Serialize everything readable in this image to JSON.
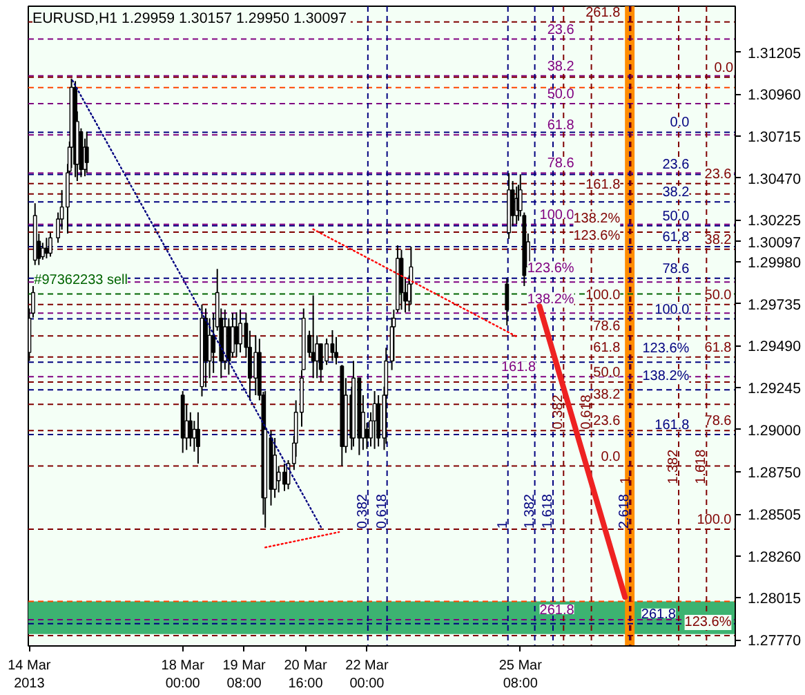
{
  "chart_data": {
    "type": "candlestick",
    "title": "EURUSD,H1  1.29959 1.30157 1.29950 1.30097",
    "color": "#000000",
    "x": [
      "2013-03-14T16:00",
      "2013-03-14T18:00",
      "2013-03-14T19:00",
      "2013-03-14T21:00",
      "2013-03-14T23:00",
      "2013-03-15T01:00",
      "2013-03-15T03:00",
      "2013-03-15T07:00",
      "2013-03-15T09:00",
      "2013-03-15T12:00",
      "2013-03-15T13:00",
      "2013-03-15T14:00",
      "2013-03-15T16:00",
      "2013-03-15T17:00",
      "2013-03-15T19:00",
      "2013-03-15T21:00",
      "2013-03-15T22:00",
      "2013-03-18T00:00",
      "2013-03-18T02:00",
      "2013-03-18T04:00",
      "2013-03-18T06:00",
      "2013-03-18T08:00",
      "2013-03-18T10:00",
      "2013-03-18T12:00",
      "2013-03-18T14:00",
      "2013-03-18T16:00",
      "2013-03-18T18:00",
      "2013-03-18T20:00",
      "2013-03-18T22:00",
      "2013-03-19T00:00",
      "2013-03-19T02:00",
      "2013-03-19T04:00",
      "2013-03-19T06:00",
      "2013-03-19T09:00",
      "2013-03-19T11:00",
      "2013-03-19T14:00",
      "2013-03-19T16:00",
      "2013-03-19T18:00",
      "2013-03-19T19:00",
      "2013-03-19T22:00",
      "2013-03-20T00:00",
      "2013-03-20T02:00",
      "2013-03-20T05:00",
      "2013-03-20T07:00",
      "2013-03-20T10:00",
      "2013-03-20T11:00",
      "2013-03-20T14:00",
      "2013-03-20T15:00",
      "2013-03-20T18:00",
      "2013-03-20T20:00",
      "2013-03-20T22:00",
      "2013-03-21T00:00",
      "2013-03-21T03:00",
      "2013-03-21T06:00",
      "2013-03-21T08:00",
      "2013-03-21T11:00",
      "2013-03-21T13:00",
      "2013-03-21T16:00",
      "2013-03-21T17:00",
      "2013-03-21T20:00",
      "2013-03-21T22:00",
      "2013-03-22T00:00",
      "2013-03-22T02:00",
      "2013-03-22T04:00",
      "2013-03-22T06:00",
      "2013-03-22T09:00",
      "2013-03-22T10:00",
      "2013-03-22T13:00",
      "2013-03-22T14:00",
      "2013-03-22T16:00",
      "2013-03-22T18:00",
      "2013-03-22T20:00",
      "2013-03-22T22:00",
      "2013-03-22T23:00",
      "2013-03-25T01:00",
      "2013-03-25T02:00",
      "2013-03-25T04:00",
      "2013-03-25T06:00",
      "2013-03-25T07:00",
      "2013-03-25T08:00",
      "2013-03-25T10:00",
      "2013-03-25T12:00"
    ],
    "ohlc": [
      [
        1.2945,
        1.29707,
        1.294,
        1.2965
      ],
      [
        1.2968,
        1.29838,
        1.29654,
        1.298
      ],
      [
        1.2999,
        1.30322,
        1.29961,
        1.3025
      ],
      [
        1.301,
        1.30145,
        1.29961,
        1.3
      ],
      [
        1.3001,
        1.30091,
        1.29992,
        1.3006
      ],
      [
        1.3006,
        1.3012,
        1.3,
        1.3003
      ],
      [
        1.3003,
        1.3015,
        1.3001,
        1.3012
      ],
      [
        1.3012,
        1.30268,
        1.30091,
        1.3023
      ],
      [
        1.3023,
        1.30399,
        1.30168,
        1.303
      ],
      [
        1.303,
        1.30552,
        1.30145,
        1.305
      ],
      [
        1.3051,
        1.30683,
        1.30498,
        1.3065
      ],
      [
        1.3065,
        1.31051,
        1.30529,
        1.31
      ],
      [
        1.31,
        1.31036,
        1.30475,
        1.3055
      ],
      [
        1.3055,
        1.30859,
        1.30452,
        1.308
      ],
      [
        1.3074,
        1.3076,
        1.30475,
        1.3052
      ],
      [
        1.3052,
        1.307,
        1.3048,
        1.3065
      ],
      [
        1.3065,
        1.3074,
        1.305,
        1.3056
      ],
      [
        1.292,
        1.29224,
        1.28863,
        1.2895
      ],
      [
        1.2895,
        1.2915,
        1.2888,
        1.2905
      ],
      [
        1.2905,
        1.291,
        1.289,
        1.2895
      ],
      [
        1.2895,
        1.2905,
        1.2887,
        1.29
      ],
      [
        1.29,
        1.291,
        1.288,
        1.289
      ],
      [
        1.2925,
        1.2973,
        1.29193,
        1.2965
      ],
      [
        1.2965,
        1.29707,
        1.29247,
        1.294
      ],
      [
        1.294,
        1.2965,
        1.293,
        1.2955
      ],
      [
        1.2955,
        1.2968,
        1.2933,
        1.2945
      ],
      [
        1.296,
        1.29938,
        1.29577,
        1.298
      ],
      [
        1.2965,
        1.29707,
        1.293,
        1.294
      ],
      [
        1.294,
        1.297,
        1.2935,
        1.296
      ],
      [
        1.296,
        1.2965,
        1.2932,
        1.294
      ],
      [
        1.2945,
        1.2968,
        1.2942,
        1.296
      ],
      [
        1.296,
        1.29684,
        1.29423,
        1.295
      ],
      [
        1.295,
        1.297,
        1.2945,
        1.2962
      ],
      [
        1.2962,
        1.2968,
        1.2942,
        1.2948
      ],
      [
        1.2948,
        1.29577,
        1.2917,
        1.293
      ],
      [
        1.293,
        1.2955,
        1.292,
        1.2945
      ],
      [
        1.2945,
        1.2953,
        1.2917,
        1.292
      ],
      [
        1.292,
        1.2922,
        1.28502,
        1.286
      ],
      [
        1.286,
        1.29224,
        1.28425,
        1.29
      ],
      [
        1.2895,
        1.28993,
        1.28555,
        1.2865
      ],
      [
        1.2865,
        1.2895,
        1.286,
        1.2885
      ],
      [
        1.287,
        1.28786,
        1.28632,
        1.2875
      ],
      [
        1.2875,
        1.288,
        1.2864,
        1.2868
      ],
      [
        1.2868,
        1.2882,
        1.2865,
        1.288
      ],
      [
        1.288,
        1.28962,
        1.28763,
        1.2892
      ],
      [
        1.2892,
        1.2917,
        1.2884,
        1.291
      ],
      [
        1.291,
        1.29347,
        1.29016,
        1.293
      ],
      [
        1.2935,
        1.29707,
        1.29347,
        1.2965
      ],
      [
        1.2955,
        1.29577,
        1.29423,
        1.2945
      ],
      [
        1.2945,
        1.29784,
        1.293,
        1.294
      ],
      [
        1.294,
        1.2955,
        1.293,
        1.295
      ],
      [
        1.295,
        1.295,
        1.2928,
        1.2935
      ],
      [
        1.294,
        1.29531,
        1.29377,
        1.295
      ],
      [
        1.295,
        1.2958,
        1.294,
        1.2945
      ],
      [
        1.2945,
        1.2954,
        1.2938,
        1.2942
      ],
      [
        1.2937,
        1.29377,
        1.28786,
        1.289
      ],
      [
        1.289,
        1.293,
        1.28863,
        1.292
      ],
      [
        1.292,
        1.2925,
        1.2888,
        1.2895
      ],
      [
        1.2895,
        1.294,
        1.289,
        1.293
      ],
      [
        1.293,
        1.293,
        1.2885,
        1.2895
      ],
      [
        1.2895,
        1.292,
        1.2888,
        1.291
      ],
      [
        1.29,
        1.29039,
        1.28886,
        1.2895
      ],
      [
        1.2895,
        1.291,
        1.289,
        1.2905
      ],
      [
        1.2905,
        1.29224,
        1.28886,
        1.2915
      ],
      [
        1.2915,
        1.292,
        1.289,
        1.2895
      ],
      [
        1.2895,
        1.2925,
        1.2888,
        1.292
      ],
      [
        1.292,
        1.29477,
        1.28916,
        1.294
      ],
      [
        1.294,
        1.29654,
        1.29347,
        1.296
      ],
      [
        1.296,
        1.297,
        1.294,
        1.2965
      ],
      [
        1.297,
        1.30076,
        1.29684,
        1.3
      ],
      [
        1.3,
        1.3005,
        1.297,
        1.298
      ],
      [
        1.298,
        1.29884,
        1.29684,
        1.2975
      ],
      [
        1.2975,
        1.299,
        1.2969,
        1.2985
      ],
      [
        1.2985,
        1.30068,
        1.2973,
        1.2995
      ],
      [
        1.2985,
        1.29884,
        1.29608,
        1.297
      ],
      [
        1.3015,
        1.30498,
        1.30114,
        1.304
      ],
      [
        1.304,
        1.30452,
        1.30191,
        1.3025
      ],
      [
        1.3025,
        1.3042,
        1.302,
        1.3035
      ],
      [
        1.3035,
        1.3043,
        1.3022,
        1.3028
      ],
      [
        1.3028,
        1.30491,
        1.30245,
        1.304
      ],
      [
        1.3025,
        1.30268,
        1.29838,
        1.299
      ],
      [
        1.2995,
        1.30145,
        1.29938,
        1.30097
      ]
    ],
    "series": [
      {
        "type": "line",
        "color": "#000080",
        "line_style": "dotted",
        "x": [
          "2013-03-15T14:30",
          "2013-03-21T00:30"
        ],
        "values": [
          1.3104,
          1.2842
        ]
      },
      {
        "type": "line",
        "color": "#ff0000",
        "line_style": "dotted",
        "x": [
          "2013-03-20T20:00",
          "2013-03-25T06:30"
        ],
        "values": [
          1.3017,
          1.2954
        ]
      },
      {
        "type": "line",
        "color": "#ff0000",
        "line_style": "dotted",
        "x": [
          "2013-03-19T19:00",
          "2013-03-21T09:30"
        ],
        "values": [
          1.2831,
          1.284
        ]
      },
      {
        "type": "line",
        "color": "#ee2222",
        "line_style": "solid",
        "x": [
          "2013-03-25T18:00",
          "2013-03-27T14:30"
        ],
        "values": [
          1.2972,
          1.2802
        ]
      }
    ],
    "xlim": [
      "2013-03-14T15:30",
      "2013-03-30T00:00"
    ],
    "xticks": [
      {
        "value": "2013-03-14T16:00",
        "label": "14 Mar 2013"
      },
      {
        "value": "2013-03-18T00:00",
        "label": "18 Mar 00:00"
      },
      {
        "value": "2013-03-19T08:00",
        "label": "19 Mar 08:00"
      },
      {
        "value": "2013-03-20T16:00",
        "label": "20 Mar 16:00"
      },
      {
        "value": "2013-03-22T00:00",
        "label": "22 Mar 00:00"
      },
      {
        "value": "2013-03-25T08:00",
        "label": "25 Mar 08:00"
      }
    ],
    "ylim": [
      1.27734,
      1.31474
    ],
    "yticks": [
      {
        "value": 1.31205,
        "label": "1.31205"
      },
      {
        "value": 1.3096,
        "label": "1.30960"
      },
      {
        "value": 1.30715,
        "label": "1.30715"
      },
      {
        "value": 1.3047,
        "label": "1.30470"
      },
      {
        "value": 1.30225,
        "label": "1.30225"
      },
      {
        "value": 1.30097,
        "label": "1.30097"
      },
      {
        "value": 1.2998,
        "label": "1.29980"
      },
      {
        "value": 1.29735,
        "label": "1.29735"
      },
      {
        "value": 1.2949,
        "label": "1.29490"
      },
      {
        "value": 1.29245,
        "label": "1.29245"
      },
      {
        "value": 1.29,
        "label": "1.29000"
      },
      {
        "value": 1.2875,
        "label": "1.28750"
      },
      {
        "value": 1.28505,
        "label": "1.28505"
      },
      {
        "value": 1.2826,
        "label": "1.28260"
      },
      {
        "value": 1.28015,
        "label": "1.28015"
      },
      {
        "value": 1.2777,
        "label": "1.27770"
      }
    ],
    "ref_lines": [
      {
        "axis": "y",
        "value": 1.30737,
        "color": "#000080",
        "line_style": "dashed"
      },
      {
        "axis": "y",
        "value": 1.30491,
        "color": "#000080",
        "line_style": "dashed"
      },
      {
        "axis": "y",
        "value": 1.3033,
        "color": "#000080",
        "line_style": "dashed"
      },
      {
        "axis": "y",
        "value": 1.30191,
        "color": "#000080",
        "line_style": "dashed"
      },
      {
        "axis": "y",
        "value": 1.30068,
        "color": "#000080",
        "line_style": "dashed"
      },
      {
        "axis": "y",
        "value": 1.29884,
        "color": "#000080",
        "line_style": "dashed"
      },
      {
        "axis": "y",
        "value": 1.29646,
        "color": "#000080",
        "line_style": "dashed"
      },
      {
        "axis": "y",
        "value": 1.29393,
        "color": "#000080",
        "line_style": "dashed"
      },
      {
        "axis": "y",
        "value": 1.29231,
        "color": "#000080",
        "line_style": "dashed"
      },
      {
        "axis": "y",
        "value": 1.2897,
        "color": "#000080",
        "line_style": "dashed"
      },
      {
        "axis": "y",
        "value": 1.27864,
        "color": "#000080",
        "line_style": "dashed"
      },
      {
        "axis": "y",
        "value": 1.31282,
        "color": "#800080",
        "line_style": "dashed"
      },
      {
        "axis": "y",
        "value": 1.31067,
        "color": "#800080",
        "line_style": "dashed"
      },
      {
        "axis": "y",
        "value": 1.30905,
        "color": "#800080",
        "line_style": "dashed"
      },
      {
        "axis": "y",
        "value": 1.30722,
        "color": "#800080",
        "line_style": "dashed"
      },
      {
        "axis": "y",
        "value": 1.30499,
        "color": "#800080",
        "line_style": "dashed"
      },
      {
        "axis": "y",
        "value": 1.30199,
        "color": "#800080",
        "line_style": "dashed"
      },
      {
        "axis": "y",
        "value": 1.29861,
        "color": "#800080",
        "line_style": "dashed"
      },
      {
        "axis": "y",
        "value": 1.2968,
        "color": "#800080",
        "line_style": "dashed"
      },
      {
        "axis": "y",
        "value": 1.29308,
        "color": "#800080",
        "line_style": "dashed"
      },
      {
        "axis": "y",
        "value": 1.27887,
        "color": "#800080",
        "line_style": "dashed"
      },
      {
        "axis": "y",
        "value": 1.31059,
        "color": "#800000",
        "line_style": "dashed"
      },
      {
        "axis": "y",
        "value": 1.30437,
        "color": "#800000",
        "line_style": "dashed"
      },
      {
        "axis": "y",
        "value": 1.30053,
        "color": "#800000",
        "line_style": "dashed"
      },
      {
        "axis": "y",
        "value": 1.2973,
        "color": "#800000",
        "line_style": "dashed"
      },
      {
        "axis": "y",
        "value": 1.29423,
        "color": "#800000",
        "line_style": "dashed"
      },
      {
        "axis": "y",
        "value": 1.28993,
        "color": "#800000",
        "line_style": "dashed"
      },
      {
        "axis": "y",
        "value": 1.28417,
        "color": "#800000",
        "line_style": "dashed"
      },
      {
        "axis": "y",
        "value": 1.27795,
        "color": "#800000",
        "line_style": "dashed"
      },
      {
        "axis": "y",
        "value": 1.31382,
        "color": "#800000",
        "line_style": "dashed"
      },
      {
        "axis": "y",
        "value": 1.30376,
        "color": "#800000",
        "line_style": "dashed"
      },
      {
        "axis": "y",
        "value": 1.30153,
        "color": "#800000",
        "line_style": "dashed"
      },
      {
        "axis": "y",
        "value": 1.29546,
        "color": "#800000",
        "line_style": "dashed"
      },
      {
        "axis": "y",
        "value": 1.29277,
        "color": "#800000",
        "line_style": "dashed"
      },
      {
        "axis": "y",
        "value": 1.29147,
        "color": "#800000",
        "line_style": "dashed"
      },
      {
        "axis": "y",
        "value": 1.28786,
        "color": "#800000",
        "line_style": "dashed"
      },
      {
        "axis": "y",
        "value": 1.30998,
        "color": "#ff4500",
        "line_style": "dashed"
      },
      {
        "axis": "y",
        "value": 1.27995,
        "color": "#ff4500",
        "line_style": "dashed"
      },
      {
        "axis": "y",
        "value": 1.29792,
        "color": "#006400",
        "line_style": "dashed"
      },
      {
        "axis": "x",
        "value": "2013-03-22T00:30",
        "color": "#000080",
        "line_style": "dashed"
      },
      {
        "axis": "x",
        "value": "2013-03-22T10:30",
        "color": "#000080",
        "line_style": "dashed"
      },
      {
        "axis": "x",
        "value": "2013-03-25T01:30",
        "color": "#000080",
        "line_style": "dashed"
      },
      {
        "axis": "x",
        "value": "2013-03-25T15:30",
        "color": "#000080",
        "line_style": "dashed"
      },
      {
        "axis": "x",
        "value": "2013-03-26T01:00",
        "color": "#000080",
        "line_style": "dashed"
      },
      {
        "axis": "x",
        "value": "2013-03-27T17:00",
        "color": "#000080",
        "line_style": "dashed"
      },
      {
        "axis": "x",
        "value": "2013-03-26T06:30",
        "color": "#800000",
        "line_style": "dashed"
      },
      {
        "axis": "x",
        "value": "2013-03-26T21:00",
        "color": "#800000",
        "line_style": "dashed"
      },
      {
        "axis": "x",
        "value": "2013-03-27T17:30",
        "color": "#800000",
        "line_style": "dashed"
      },
      {
        "axis": "x",
        "value": "2013-03-28T18:30",
        "color": "#800000",
        "line_style": "dashed"
      },
      {
        "axis": "x",
        "value": "2013-03-29T09:00",
        "color": "#800000",
        "line_style": "dashed"
      }
    ],
    "bands": [
      {
        "axis": "y",
        "from": 1.27804,
        "to": 1.27995,
        "color": "#3cb371"
      },
      {
        "axis": "x",
        "from": "2013-03-27T14:30",
        "to": "2013-03-27T19:30",
        "color": "#ff8c00"
      }
    ],
    "annotations": [
      {
        "text": "0.0",
        "x": "2013-03-29T00:00",
        "y": 1.30737
      },
      {
        "text": "23.6",
        "x": "2013-03-29T00:00",
        "y": 1.30491
      },
      {
        "text": "38.2",
        "x": "2013-03-29T00:00",
        "y": 1.3033
      },
      {
        "text": "50.0",
        "x": "2013-03-29T00:00",
        "y": 1.30191
      },
      {
        "text": "61.8",
        "x": "2013-03-29T00:00",
        "y": 1.30068
      },
      {
        "text": "78.6",
        "x": "2013-03-29T00:00",
        "y": 1.29884
      },
      {
        "text": "100.0",
        "x": "2013-03-29T00:00",
        "y": 1.29646
      },
      {
        "text": "123.6%",
        "x": "2013-03-29T00:00",
        "y": 1.29393
      },
      {
        "text": "138.2%",
        "x": "2013-03-29T00:00",
        "y": 1.29231
      },
      {
        "text": "161.8",
        "x": "2013-03-29T00:00",
        "y": 1.2897
      },
      {
        "text": "261.8",
        "x": "2013-03-28T17:00",
        "y": 1.27864
      },
      {
        "text": "23.6",
        "x": "2013-03-26T12:00",
        "y": 1.31282
      },
      {
        "text": "38.2",
        "x": "2013-03-26T12:00",
        "y": 1.31067
      },
      {
        "text": "50.0",
        "x": "2013-03-26T12:00",
        "y": 1.30905
      },
      {
        "text": "61.8",
        "x": "2013-03-26T12:00",
        "y": 1.30722
      },
      {
        "text": "78.6",
        "x": "2013-03-26T12:00",
        "y": 1.30499
      },
      {
        "text": "100.0",
        "x": "2013-03-26T12:00",
        "y": 1.30199
      },
      {
        "text": "123.6%",
        "x": "2013-03-26T12:00",
        "y": 1.29861
      },
      {
        "text": "138.2%",
        "x": "2013-03-26T12:00",
        "y": 1.2968
      },
      {
        "text": "161.8",
        "x": "2013-03-25T16:00",
        "y": 1.29308
      },
      {
        "text": "261.8",
        "x": "2013-03-26T12:00",
        "y": 1.27887
      },
      {
        "text": "0.0",
        "x": "2013-03-29T23:00",
        "y": 1.31059
      },
      {
        "text": "23.6",
        "x": "2013-03-29T22:00",
        "y": 1.30437
      },
      {
        "text": "38.2",
        "x": "2013-03-29T22:00",
        "y": 1.30053
      },
      {
        "text": "50.0",
        "x": "2013-03-29T22:00",
        "y": 1.2973
      },
      {
        "text": "61.8",
        "x": "2013-03-29T22:00",
        "y": 1.29423
      },
      {
        "text": "78.6",
        "x": "2013-03-29T22:00",
        "y": 1.28993
      },
      {
        "text": "100.0",
        "x": "2013-03-29T22:00",
        "y": 1.28417
      },
      {
        "text": "123.6%",
        "x": "2013-03-29T22:00",
        "y": 1.27795
      },
      {
        "text": "261.8",
        "x": "2013-03-27T12:00",
        "y": 1.31382
      },
      {
        "text": "161.8",
        "x": "2013-03-27T12:00",
        "y": 1.30376
      },
      {
        "text": "138.2%",
        "x": "2013-03-27T12:00",
        "y": 1.30153
      },
      {
        "text": "123.6%",
        "x": "2013-03-27T12:00",
        "y": 1.30053
      },
      {
        "text": "100.0",
        "x": "2013-03-27T12:00",
        "y": 1.2973
      },
      {
        "text": "78.6",
        "x": "2013-03-27T12:00",
        "y": 1.29546
      },
      {
        "text": "61.8",
        "x": "2013-03-27T12:00",
        "y": 1.29423
      },
      {
        "text": "50.0",
        "x": "2013-03-27T12:00",
        "y": 1.29277
      },
      {
        "text": "38.2",
        "x": "2013-03-27T12:00",
        "y": 1.29147
      },
      {
        "text": "23.6",
        "x": "2013-03-27T12:00",
        "y": 1.28993
      },
      {
        "text": "0.0",
        "x": "2013-03-27T12:00",
        "y": 1.28786
      },
      {
        "text": "#97362233 sell",
        "x": "2013-03-14T18:30",
        "y": 1.29792
      },
      {
        "text": "0.382",
        "x": "2013-03-22T00:30",
        "y": 1.2842
      },
      {
        "text": "0.618",
        "x": "2013-03-22T10:30",
        "y": 1.2842
      },
      {
        "text": "1",
        "x": "2013-03-25T01:30",
        "y": 1.2842
      },
      {
        "text": "1.382",
        "x": "2013-03-25T15:30",
        "y": 1.2842
      },
      {
        "text": "1.618",
        "x": "2013-03-26T01:00",
        "y": 1.2842
      },
      {
        "text": "2.618",
        "x": "2013-03-27T17:00",
        "y": 1.2842
      },
      {
        "text": "0.382",
        "x": "2013-03-26T06:30",
        "y": 1.29
      },
      {
        "text": "0.618",
        "x": "2013-03-26T21:00",
        "y": 1.29
      },
      {
        "text": "1",
        "x": "2013-03-27T17:30",
        "y": 1.2868
      },
      {
        "text": "1.382",
        "x": "2013-03-28T18:30",
        "y": 1.2868
      },
      {
        "text": "1.618",
        "x": "2013-03-29T09:00",
        "y": 1.2868
      }
    ]
  }
}
